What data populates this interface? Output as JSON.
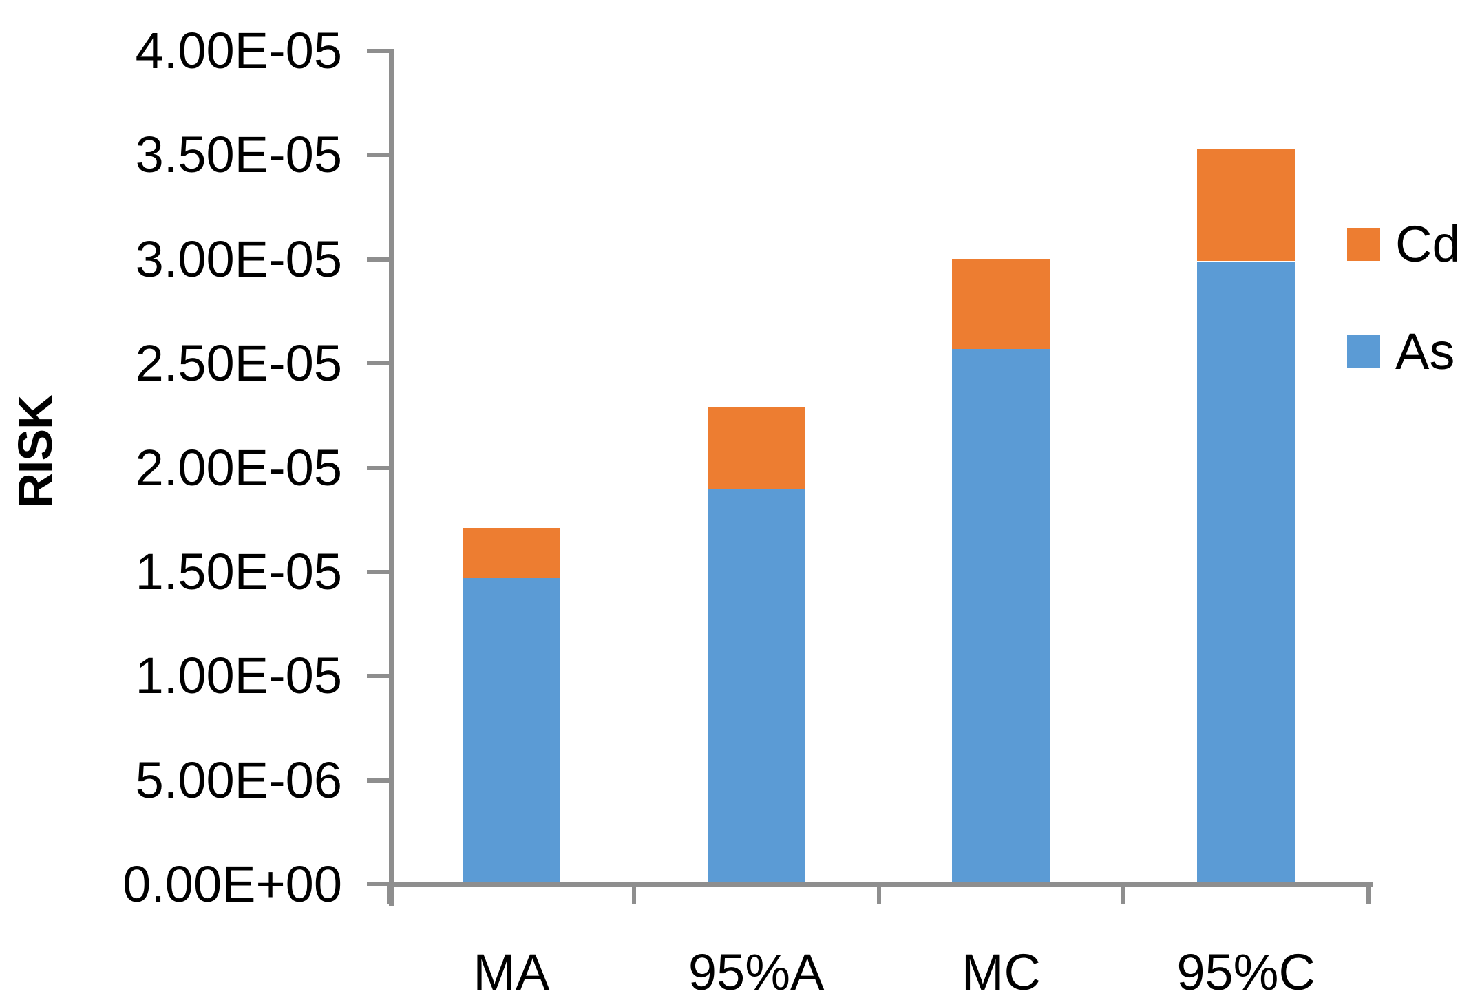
{
  "chart_data": {
    "type": "bar",
    "stacked": true,
    "categories": [
      "MA",
      "95%A",
      "MC",
      "95%C"
    ],
    "series": [
      {
        "name": "Cd",
        "color": "#ED7D31",
        "values": [
          2.4e-06,
          3.9e-06,
          4.3e-06,
          5.4e-06
        ]
      },
      {
        "name": "As",
        "color": "#5B9BD5",
        "values": [
          1.47e-05,
          1.9e-05,
          2.57e-05,
          2.99e-05
        ]
      }
    ],
    "stack_bottom_to_top": [
      "As",
      "Cd"
    ],
    "y_axis": {
      "title": "RISK",
      "min": 0,
      "max": 4e-05,
      "tick_step": 5e-06,
      "tick_labels_bottom_to_top": [
        "0.00E+00",
        "5.00E-06",
        "1.00E-05",
        "1.50E-05",
        "2.00E-05",
        "2.50E-05",
        "3.00E-05",
        "3.50E-05",
        "4.00E-05"
      ]
    },
    "x_axis": {
      "labels": [
        "MA",
        "95%A",
        "MC",
        "95%C"
      ]
    },
    "legend": {
      "position": "right",
      "items": [
        {
          "label": "Cd",
          "color": "#ED7D31"
        },
        {
          "label": "As",
          "color": "#5B9BD5"
        }
      ]
    },
    "grid": false,
    "axis_color": "#8E8E8E",
    "text_color": "#000000",
    "background": "#FFFFFF"
  }
}
